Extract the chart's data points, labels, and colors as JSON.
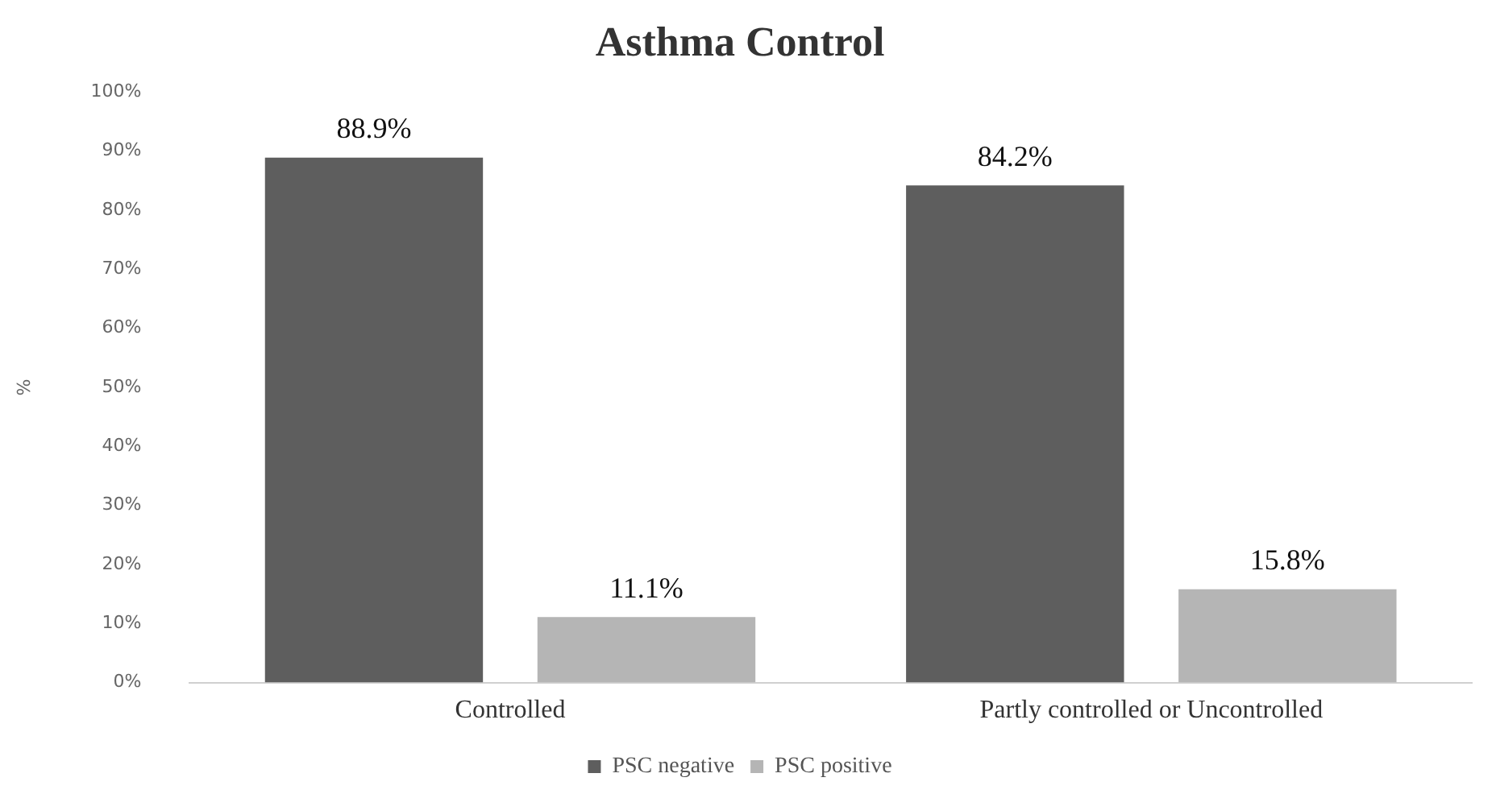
{
  "chart_data": {
    "type": "bar",
    "title": "Asthma Control",
    "ylabel": "%",
    "categories": [
      "Controlled",
      "Partly controlled or Uncontrolled"
    ],
    "series": [
      {
        "name": "PSC negative",
        "color": "#5e5e5e",
        "values": [
          88.9,
          84.2
        ],
        "value_labels": [
          "88.9%",
          "84.2%"
        ]
      },
      {
        "name": "PSC positive",
        "color": "#b5b5b5",
        "values": [
          11.1,
          15.8
        ],
        "value_labels": [
          "11.1%",
          "15.8%"
        ]
      }
    ],
    "ylim": [
      0,
      100
    ],
    "yticks": [
      {
        "value": 0,
        "label": "0%"
      },
      {
        "value": 10,
        "label": "10%"
      },
      {
        "value": 20,
        "label": "20%"
      },
      {
        "value": 30,
        "label": "30%"
      },
      {
        "value": 40,
        "label": "40%"
      },
      {
        "value": 50,
        "label": "50%"
      },
      {
        "value": 60,
        "label": "60%"
      },
      {
        "value": 70,
        "label": "70%"
      },
      {
        "value": 80,
        "label": "80%"
      },
      {
        "value": 90,
        "label": "90%"
      },
      {
        "value": 100,
        "label": "100%"
      }
    ],
    "grid": false,
    "legend": "bottom"
  }
}
